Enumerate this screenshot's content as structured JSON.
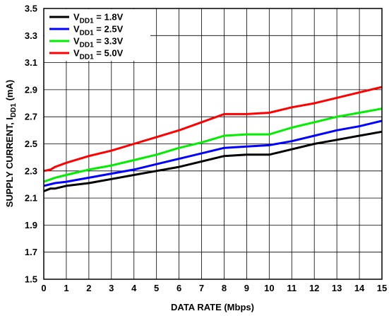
{
  "chart_data": {
    "type": "line",
    "xlabel": "DATA RATE (Mbps)",
    "ylabel": "SUPPLY CURRENT, I",
    "ylabel_sub": "DD1",
    "ylabel_unit": " (mA)",
    "xlim": [
      0,
      15
    ],
    "ylim": [
      1.5,
      3.5
    ],
    "xticks": [
      "0",
      "1",
      "2",
      "3",
      "4",
      "5",
      "6",
      "7",
      "8",
      "9",
      "10",
      "11",
      "12",
      "13",
      "14",
      "15"
    ],
    "yticks": [
      "1.5",
      "1.7",
      "1.9",
      "2.1",
      "2.3",
      "2.5",
      "2.7",
      "2.9",
      "3.1",
      "3.3",
      "3.5"
    ],
    "grid": true,
    "legend_position": "top-left",
    "series": [
      {
        "name_main": "V",
        "name_sub": "DD1",
        "name_rest": " = 1.8V",
        "color": "#000000",
        "x": [
          0,
          0.3,
          0.5,
          1,
          2,
          3,
          4,
          5,
          6,
          7,
          8,
          9,
          10,
          11,
          12,
          13,
          14,
          15
        ],
        "y": [
          2.15,
          2.17,
          2.17,
          2.19,
          2.21,
          2.24,
          2.27,
          2.3,
          2.33,
          2.37,
          2.41,
          2.42,
          2.42,
          2.46,
          2.5,
          2.53,
          2.56,
          2.59
        ]
      },
      {
        "name_main": "V",
        "name_sub": "DD1",
        "name_rest": " = 2.5V",
        "color": "#0000ff",
        "x": [
          0,
          0.5,
          1,
          2,
          3,
          4,
          5,
          6,
          7,
          8,
          9,
          10,
          11,
          12,
          13,
          14,
          15
        ],
        "y": [
          2.19,
          2.21,
          2.22,
          2.25,
          2.28,
          2.31,
          2.35,
          2.39,
          2.43,
          2.47,
          2.48,
          2.49,
          2.52,
          2.56,
          2.6,
          2.63,
          2.67
        ]
      },
      {
        "name_main": "V",
        "name_sub": "DD1",
        "name_rest": " = 3.3V",
        "color": "#00ee00",
        "x": [
          0,
          0.5,
          1,
          2,
          3,
          4,
          5,
          6,
          7,
          8,
          9,
          10,
          11,
          12,
          13,
          14,
          15
        ],
        "y": [
          2.22,
          2.25,
          2.27,
          2.31,
          2.34,
          2.38,
          2.42,
          2.47,
          2.51,
          2.56,
          2.57,
          2.57,
          2.62,
          2.66,
          2.7,
          2.73,
          2.76
        ]
      },
      {
        "name_main": "V",
        "name_sub": "DD1",
        "name_rest": " = 5.0V",
        "color": "#ff0000",
        "x": [
          0,
          0.3,
          0.5,
          1,
          2,
          3,
          4,
          5,
          6,
          7,
          8,
          9,
          10,
          11,
          12,
          13,
          14,
          15
        ],
        "y": [
          2.3,
          2.31,
          2.33,
          2.36,
          2.41,
          2.45,
          2.5,
          2.55,
          2.6,
          2.66,
          2.72,
          2.72,
          2.73,
          2.77,
          2.8,
          2.84,
          2.88,
          2.92
        ]
      }
    ]
  }
}
